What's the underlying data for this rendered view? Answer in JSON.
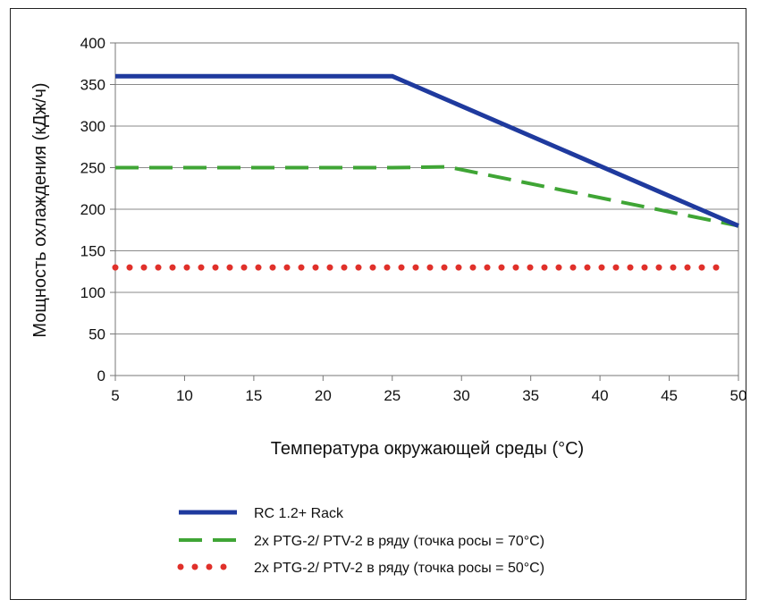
{
  "chart_data": {
    "type": "line",
    "xlabel": "Температура окружающей среды (°C)",
    "ylabel": "Мощность охлаждения (кДж/ч)",
    "xlim": [
      5,
      50
    ],
    "ylim": [
      0,
      400
    ],
    "x_ticks": [
      5,
      10,
      15,
      20,
      25,
      30,
      35,
      40,
      45,
      50
    ],
    "y_ticks": [
      0,
      50,
      100,
      150,
      200,
      250,
      300,
      350,
      400
    ],
    "grid": "horizontal",
    "legend_position": "bottom",
    "series": [
      {
        "name": "RC 1.2+ Rack",
        "color": "#1f3a9e",
        "style": "solid",
        "points": [
          [
            5,
            360
          ],
          [
            25,
            360
          ],
          [
            50,
            180
          ]
        ]
      },
      {
        "name": "2x PTG-2/ PTV-2 в ряду (точка росы = 70°C)",
        "color": "#3fa535",
        "style": "dashed",
        "points": [
          [
            5,
            250
          ],
          [
            25,
            250
          ],
          [
            29,
            251
          ],
          [
            50,
            180
          ]
        ]
      },
      {
        "name": "2x PTG-2/ PTV-2 в ряду (точка росы = 50°C)",
        "color": "#e0302a",
        "style": "dotted",
        "points": [
          [
            5,
            130
          ],
          [
            49,
            130
          ]
        ]
      }
    ]
  }
}
